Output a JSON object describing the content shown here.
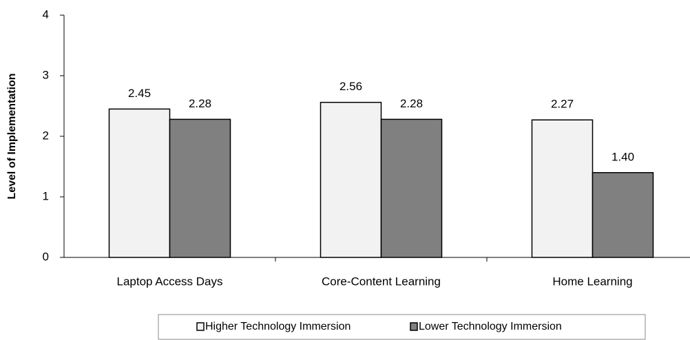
{
  "chart_data": {
    "type": "bar",
    "y_label": "Level of Implementation",
    "categories": [
      "Laptop Access Days",
      "Core-Content Learning",
      "Home Learning"
    ],
    "series": [
      {
        "name": "Higher Technology Immersion",
        "color": "#f2f2f2",
        "values": [
          2.45,
          2.56,
          2.27
        ],
        "value_labels": [
          "2.45",
          "2.56",
          "2.27"
        ]
      },
      {
        "name": "Lower Technology Immersion",
        "color": "#808080",
        "values": [
          2.28,
          2.28,
          1.4
        ],
        "value_labels": [
          "2.28",
          "2.28",
          "1.40"
        ]
      }
    ],
    "ylim": [
      0,
      4
    ],
    "yticks": [
      0,
      1,
      2,
      3,
      4
    ],
    "grid": false,
    "legend": "bottom"
  }
}
